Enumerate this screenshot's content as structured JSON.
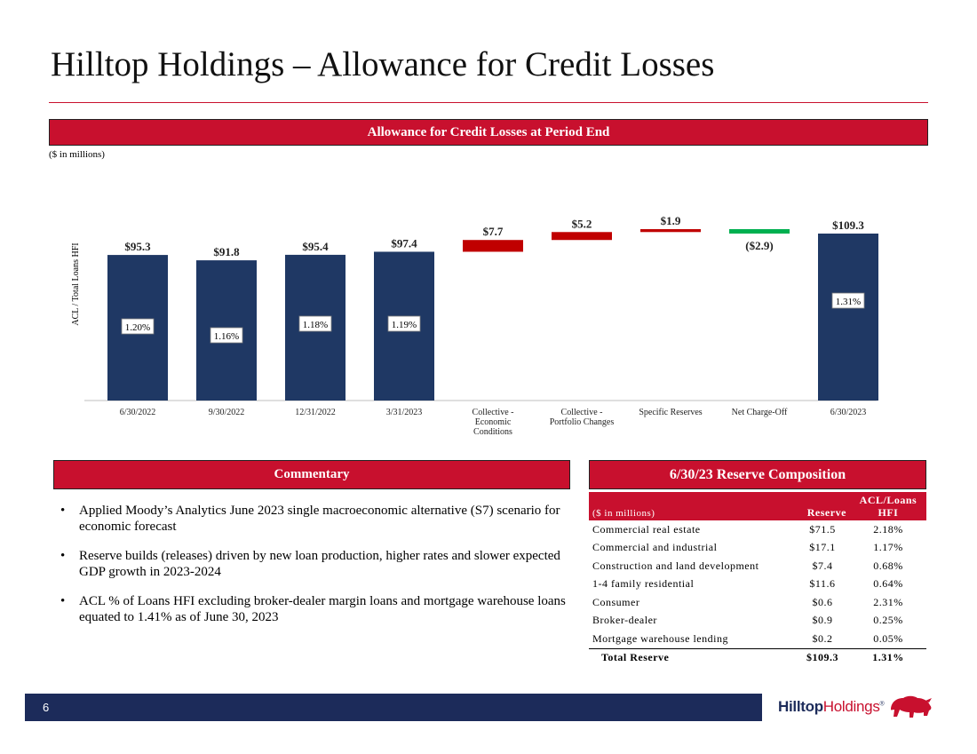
{
  "title": "Hilltop Holdings – Allowance for Credit Losses",
  "chart_banner": "Allowance for Credit Losses at Period End",
  "units_note": "($ in millions)",
  "colors": {
    "brand_red": "#c8102e",
    "navy": "#1f3864",
    "increase": "#c00000",
    "decrease": "#00b050"
  },
  "chart_data": {
    "type": "bar",
    "subtype": "waterfall",
    "title": "Allowance for Credit Losses at Period End",
    "units": "($ in millions)",
    "ylabel": "ACL / Total Loans HFI",
    "ylim": [
      0,
      115
    ],
    "grid": false,
    "categories": [
      "6/30/2022",
      "9/30/2022",
      "12/31/2022",
      "3/31/2023",
      "Collective - Economic Conditions",
      "Collective - Portfolio Changes",
      "Specific Reserves",
      "Net Charge-Off",
      "6/30/2023"
    ],
    "bars": [
      {
        "category": "6/30/2022",
        "kind": "total",
        "value": 95.3,
        "label": "$95.3",
        "ratio": "1.20%"
      },
      {
        "category": "9/30/2022",
        "kind": "total",
        "value": 91.8,
        "label": "$91.8",
        "ratio": "1.16%"
      },
      {
        "category": "12/31/2022",
        "kind": "total",
        "value": 95.4,
        "label": "$95.4",
        "ratio": "1.18%"
      },
      {
        "category": "3/31/2023",
        "kind": "total",
        "value": 97.4,
        "label": "$97.4",
        "ratio": "1.19%"
      },
      {
        "category": "Collective - Economic Conditions",
        "kind": "increase",
        "value": 7.7,
        "label": "$7.7"
      },
      {
        "category": "Collective - Portfolio Changes",
        "kind": "increase",
        "value": 5.2,
        "label": "$5.2"
      },
      {
        "category": "Specific Reserves",
        "kind": "increase",
        "value": 1.9,
        "label": "$1.9"
      },
      {
        "category": "Net Charge-Off",
        "kind": "decrease",
        "value": -2.9,
        "label": "($2.9)"
      },
      {
        "category": "6/30/2023",
        "kind": "total",
        "value": 109.3,
        "label": "$109.3",
        "ratio": "1.31%"
      }
    ]
  },
  "commentary": {
    "header": "Commentary",
    "bullets": [
      "Applied Moody’s Analytics June 2023 single macroeconomic alternative (S7) scenario for economic forecast",
      "Reserve builds (releases) driven by new loan production, higher rates and slower expected GDP growth in 2023-2024",
      "ACL % of Loans HFI excluding broker-dealer margin loans and mortgage warehouse loans equated to 1.41% as of June 30, 2023"
    ],
    "bullet_glyph": "•"
  },
  "reserve": {
    "header": "6/30/23 Reserve Composition",
    "col_units": "($ in millions)",
    "col_reserve": "Reserve",
    "col_ratio_line1": "ACL/Loans",
    "col_ratio_line2": "HFI",
    "rows": [
      {
        "label": "Commercial real estate",
        "reserve": "$71.5",
        "ratio": "2.18%"
      },
      {
        "label": "Commercial and industrial",
        "reserve": "$17.1",
        "ratio": "1.17%"
      },
      {
        "label": "Construction and land development",
        "reserve": "$7.4",
        "ratio": "0.68%"
      },
      {
        "label": "1-4 family residential",
        "reserve": "$11.6",
        "ratio": "0.64%"
      },
      {
        "label": "Consumer",
        "reserve": "$0.6",
        "ratio": "2.31%"
      },
      {
        "label": "Broker-dealer",
        "reserve": "$0.9",
        "ratio": "0.25%"
      },
      {
        "label": "Mortgage warehouse lending",
        "reserve": "$0.2",
        "ratio": "0.05%"
      }
    ],
    "total": {
      "label": "Total Reserve",
      "reserve": "$109.3",
      "ratio": "1.31%"
    }
  },
  "footer": {
    "page_number": "6",
    "logo_bold": "Hilltop",
    "logo_light": "Holdings",
    "logo_mark": "®"
  }
}
